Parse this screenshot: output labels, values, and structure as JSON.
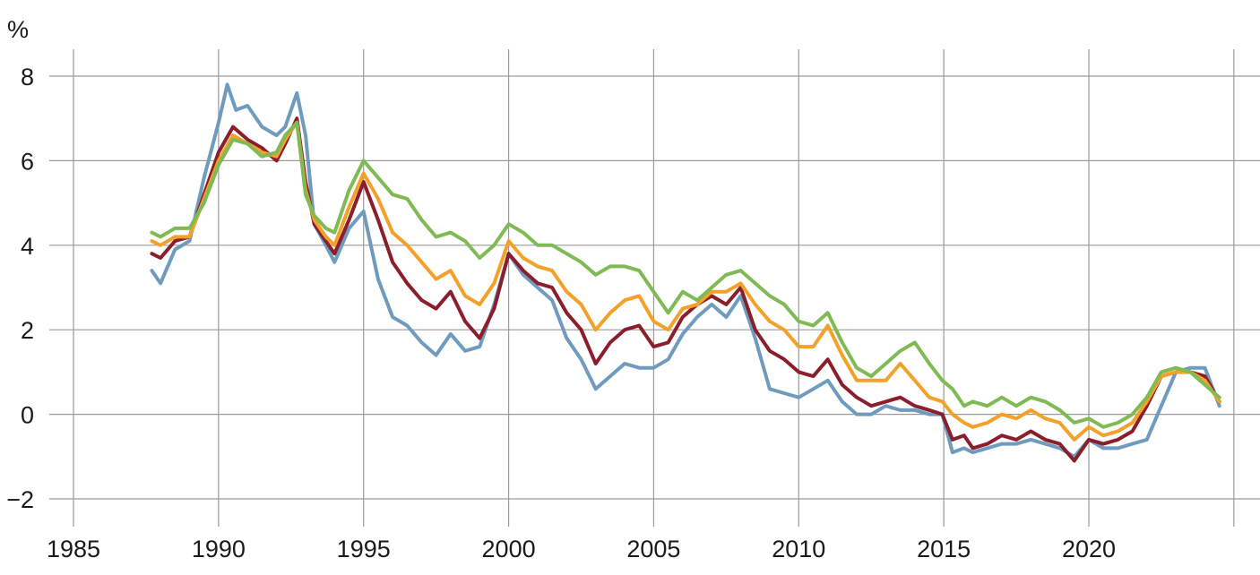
{
  "chart_data": {
    "type": "line",
    "title": "",
    "xlabel": "",
    "ylabel": "%",
    "xlim": [
      1985,
      2025
    ],
    "ylim": [
      -2,
      8
    ],
    "x_ticks": [
      1985,
      1990,
      1995,
      2000,
      2005,
      2010,
      2015,
      2020
    ],
    "y_ticks": [
      8,
      6,
      4,
      2,
      0,
      -2
    ],
    "y_tick_labels": [
      "8",
      "6",
      "4",
      "2",
      "0",
      "−2"
    ],
    "grid": true,
    "legend": "none",
    "series": [
      {
        "color": "#6f9bbf",
        "x": [
          1987.7,
          1988.0,
          1988.5,
          1989.0,
          1989.5,
          1990.0,
          1990.3,
          1990.6,
          1991.0,
          1991.5,
          1992.0,
          1992.3,
          1992.7,
          1993.0,
          1993.3,
          1993.7,
          1994.0,
          1994.5,
          1995.0,
          1995.5,
          1996.0,
          1996.5,
          1997.0,
          1997.5,
          1998.0,
          1998.5,
          1999.0,
          1999.5,
          2000.0,
          2000.5,
          2001.0,
          2001.5,
          2002.0,
          2002.5,
          2003.0,
          2003.5,
          2004.0,
          2004.5,
          2005.0,
          2005.5,
          2006.0,
          2006.5,
          2007.0,
          2007.5,
          2008.0,
          2008.5,
          2009.0,
          2009.5,
          2010.0,
          2010.5,
          2011.0,
          2011.5,
          2012.0,
          2012.5,
          2013.0,
          2013.5,
          2014.0,
          2014.5,
          2014.95,
          2015.3,
          2015.7,
          2016.0,
          2016.5,
          2017.0,
          2017.5,
          2018.0,
          2018.5,
          2019.0,
          2019.5,
          2020.0,
          2020.5,
          2021.0,
          2021.5,
          2022.0,
          2022.5,
          2023.0,
          2023.5,
          2024.0,
          2024.5
        ],
        "y": [
          3.4,
          3.1,
          3.9,
          4.1,
          5.6,
          6.9,
          7.8,
          7.2,
          7.3,
          6.8,
          6.6,
          6.8,
          7.6,
          6.6,
          4.5,
          4.0,
          3.6,
          4.4,
          4.8,
          3.2,
          2.3,
          2.1,
          1.7,
          1.4,
          1.9,
          1.5,
          1.6,
          2.6,
          3.8,
          3.3,
          3.0,
          2.7,
          1.8,
          1.3,
          0.6,
          0.9,
          1.2,
          1.1,
          1.1,
          1.3,
          1.9,
          2.3,
          2.6,
          2.3,
          2.8,
          1.8,
          0.6,
          0.5,
          0.4,
          0.6,
          0.8,
          0.3,
          0.0,
          0.0,
          0.2,
          0.1,
          0.1,
          0.0,
          0.0,
          -0.9,
          -0.8,
          -0.9,
          -0.8,
          -0.7,
          -0.7,
          -0.6,
          -0.7,
          -0.8,
          -1.0,
          -0.6,
          -0.8,
          -0.8,
          -0.7,
          -0.6,
          0.2,
          1.0,
          1.1,
          1.1,
          0.2
        ]
      },
      {
        "color": "#8b1e2b",
        "x": [
          1987.7,
          1988.0,
          1988.5,
          1989.0,
          1989.5,
          1990.0,
          1990.5,
          1991.0,
          1991.5,
          1992.0,
          1992.3,
          1992.7,
          1993.0,
          1993.3,
          1993.7,
          1994.0,
          1994.5,
          1995.0,
          1995.5,
          1996.0,
          1996.5,
          1997.0,
          1997.5,
          1998.0,
          1998.5,
          1999.0,
          1999.5,
          2000.0,
          2000.5,
          2001.0,
          2001.5,
          2002.0,
          2002.5,
          2003.0,
          2003.5,
          2004.0,
          2004.5,
          2005.0,
          2005.5,
          2006.0,
          2006.5,
          2007.0,
          2007.5,
          2008.0,
          2008.5,
          2009.0,
          2009.5,
          2010.0,
          2010.5,
          2011.0,
          2011.5,
          2012.0,
          2012.5,
          2013.0,
          2013.5,
          2014.0,
          2014.5,
          2014.95,
          2015.3,
          2015.7,
          2016.0,
          2016.5,
          2017.0,
          2017.5,
          2018.0,
          2018.5,
          2019.0,
          2019.5,
          2020.0,
          2020.5,
          2021.0,
          2021.5,
          2022.0,
          2022.5,
          2023.0,
          2023.5,
          2024.0,
          2024.5
        ],
        "y": [
          3.8,
          3.7,
          4.1,
          4.2,
          5.2,
          6.2,
          6.8,
          6.5,
          6.3,
          6.0,
          6.4,
          7.0,
          5.5,
          4.5,
          4.1,
          3.8,
          4.6,
          5.5,
          4.6,
          3.6,
          3.1,
          2.7,
          2.5,
          2.9,
          2.2,
          1.8,
          2.5,
          3.8,
          3.4,
          3.1,
          3.0,
          2.4,
          2.0,
          1.2,
          1.7,
          2.0,
          2.1,
          1.6,
          1.7,
          2.3,
          2.6,
          2.8,
          2.6,
          3.0,
          2.0,
          1.5,
          1.3,
          1.0,
          0.9,
          1.3,
          0.7,
          0.4,
          0.2,
          0.3,
          0.4,
          0.2,
          0.1,
          0.0,
          -0.6,
          -0.5,
          -0.8,
          -0.7,
          -0.5,
          -0.6,
          -0.4,
          -0.6,
          -0.7,
          -1.1,
          -0.6,
          -0.7,
          -0.6,
          -0.4,
          0.2,
          0.9,
          1.0,
          1.0,
          0.9,
          0.3
        ]
      },
      {
        "color": "#f4a12a",
        "x": [
          1987.7,
          1988.0,
          1988.5,
          1989.0,
          1989.5,
          1990.0,
          1990.5,
          1991.0,
          1991.5,
          1992.0,
          1992.3,
          1992.7,
          1993.0,
          1993.3,
          1993.7,
          1994.0,
          1994.5,
          1995.0,
          1995.5,
          1996.0,
          1996.5,
          1997.0,
          1997.5,
          1998.0,
          1998.5,
          1999.0,
          1999.5,
          2000.0,
          2000.5,
          2001.0,
          2001.5,
          2002.0,
          2002.5,
          2003.0,
          2003.5,
          2004.0,
          2004.5,
          2005.0,
          2005.5,
          2006.0,
          2006.5,
          2007.0,
          2007.5,
          2008.0,
          2008.5,
          2009.0,
          2009.5,
          2010.0,
          2010.5,
          2011.0,
          2011.5,
          2012.0,
          2012.5,
          2013.0,
          2013.5,
          2014.0,
          2014.5,
          2014.95,
          2015.3,
          2015.7,
          2016.0,
          2016.5,
          2017.0,
          2017.5,
          2018.0,
          2018.5,
          2019.0,
          2019.5,
          2020.0,
          2020.5,
          2021.0,
          2021.5,
          2022.0,
          2022.5,
          2023.0,
          2023.5,
          2024.0,
          2024.5
        ],
        "y": [
          4.1,
          4.0,
          4.2,
          4.2,
          5.1,
          6.0,
          6.6,
          6.4,
          6.2,
          6.1,
          6.5,
          6.9,
          5.3,
          4.6,
          4.2,
          4.0,
          4.9,
          5.7,
          5.1,
          4.3,
          4.0,
          3.6,
          3.2,
          3.4,
          2.8,
          2.6,
          3.1,
          4.1,
          3.7,
          3.5,
          3.4,
          2.9,
          2.6,
          2.0,
          2.4,
          2.7,
          2.8,
          2.2,
          2.0,
          2.5,
          2.6,
          2.9,
          2.9,
          3.1,
          2.6,
          2.2,
          2.0,
          1.6,
          1.6,
          2.1,
          1.4,
          0.8,
          0.8,
          0.8,
          1.2,
          0.8,
          0.4,
          0.3,
          0.0,
          -0.2,
          -0.3,
          -0.2,
          0.0,
          -0.1,
          0.1,
          -0.1,
          -0.2,
          -0.6,
          -0.3,
          -0.5,
          -0.4,
          -0.2,
          0.3,
          0.9,
          1.0,
          1.0,
          0.8,
          0.3
        ]
      },
      {
        "color": "#7fba54",
        "x": [
          1987.7,
          1988.0,
          1988.5,
          1989.0,
          1989.5,
          1990.0,
          1990.5,
          1991.0,
          1991.5,
          1992.0,
          1992.3,
          1992.7,
          1993.0,
          1993.3,
          1993.7,
          1994.0,
          1994.5,
          1995.0,
          1995.5,
          1996.0,
          1996.5,
          1997.0,
          1997.5,
          1998.0,
          1998.5,
          1999.0,
          1999.5,
          2000.0,
          2000.5,
          2001.0,
          2001.5,
          2002.0,
          2002.5,
          2003.0,
          2003.5,
          2004.0,
          2004.5,
          2005.0,
          2005.5,
          2006.0,
          2006.5,
          2007.0,
          2007.5,
          2008.0,
          2008.5,
          2009.0,
          2009.5,
          2010.0,
          2010.5,
          2011.0,
          2011.5,
          2012.0,
          2012.5,
          2013.0,
          2013.5,
          2014.0,
          2014.5,
          2014.95,
          2015.3,
          2015.7,
          2016.0,
          2016.5,
          2017.0,
          2017.5,
          2018.0,
          2018.5,
          2019.0,
          2019.5,
          2020.0,
          2020.5,
          2021.0,
          2021.5,
          2022.0,
          2022.5,
          2023.0,
          2023.5,
          2024.0,
          2024.5
        ],
        "y": [
          4.3,
          4.2,
          4.4,
          4.4,
          5.0,
          5.9,
          6.5,
          6.4,
          6.1,
          6.2,
          6.6,
          6.9,
          5.2,
          4.7,
          4.4,
          4.3,
          5.3,
          6.0,
          5.6,
          5.2,
          5.1,
          4.6,
          4.2,
          4.3,
          4.1,
          3.7,
          4.0,
          4.5,
          4.3,
          4.0,
          4.0,
          3.8,
          3.6,
          3.3,
          3.5,
          3.5,
          3.4,
          2.9,
          2.4,
          2.9,
          2.7,
          3.0,
          3.3,
          3.4,
          3.1,
          2.8,
          2.6,
          2.2,
          2.1,
          2.4,
          1.7,
          1.1,
          0.9,
          1.2,
          1.5,
          1.7,
          1.2,
          0.8,
          0.6,
          0.2,
          0.3,
          0.2,
          0.4,
          0.2,
          0.4,
          0.3,
          0.1,
          -0.2,
          -0.1,
          -0.3,
          -0.2,
          0.0,
          0.4,
          1.0,
          1.1,
          1.0,
          0.7,
          0.4
        ]
      }
    ]
  }
}
